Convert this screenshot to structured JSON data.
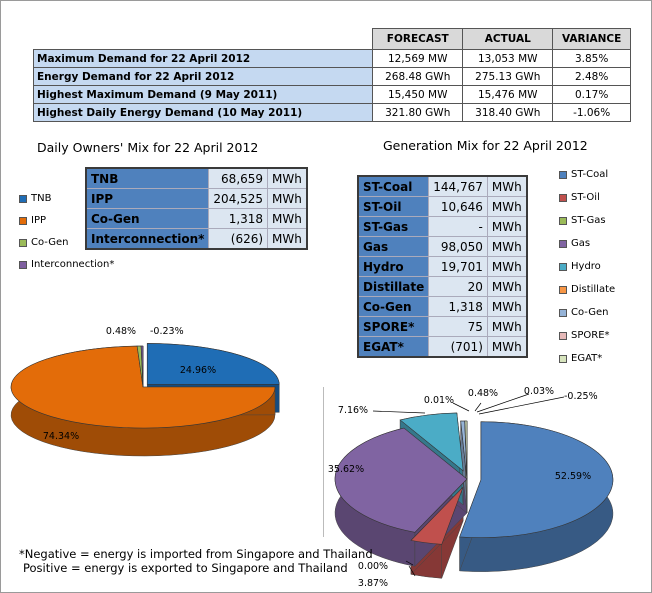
{
  "summary": {
    "headers": [
      "",
      "FORECAST",
      "ACTUAL",
      "VARIANCE"
    ],
    "rows": [
      [
        "Maximum Demand for 22 April 2012",
        "12,569 MW",
        "13,053 MW",
        "3.85%"
      ],
      [
        "Energy Demand for 22 April 2012",
        "268.48 GWh",
        "275.13 GWh",
        "2.48%"
      ],
      [
        "Highest Maximum Demand (9 May 2011)",
        "15,450 MW",
        "15,476 MW",
        "0.17%"
      ],
      [
        "Highest Daily Energy Demand (10 May 2011)",
        "321.80 GWh",
        "318.40 GWh",
        "-1.06%"
      ]
    ]
  },
  "owners": {
    "title": "Daily Owners' Mix for 22 April 2012",
    "table": [
      [
        "TNB",
        "68,659",
        "MWh"
      ],
      [
        "IPP",
        "204,525",
        "MWh"
      ],
      [
        "Co-Gen",
        "1,318",
        "MWh"
      ],
      [
        "Interconnection*",
        "(626)",
        "MWh"
      ]
    ],
    "legend": [
      "TNB",
      "IPP",
      "Co-Gen",
      "Interconnection*"
    ]
  },
  "generation": {
    "title": "Generation Mix for 22 April 2012",
    "table": [
      [
        "ST-Coal",
        "144,767",
        "MWh"
      ],
      [
        "ST-Oil",
        "10,646",
        "MWh"
      ],
      [
        "ST-Gas",
        "-",
        "MWh"
      ],
      [
        "Gas",
        "98,050",
        "MWh"
      ],
      [
        "Hydro",
        "19,701",
        "MWh"
      ],
      [
        "Distillate",
        "20",
        "MWh"
      ],
      [
        "Co-Gen",
        "1,318",
        "MWh"
      ],
      [
        "SPORE*",
        "75",
        "MWh"
      ],
      [
        "EGAT*",
        "(701)",
        "MWh"
      ]
    ],
    "legend": [
      "ST-Coal",
      "ST-Oil",
      "ST-Gas",
      "Gas",
      "Hydro",
      "Distillate",
      "Co-Gen",
      "SPORE*",
      "EGAT*"
    ]
  },
  "footnote": {
    "line1": "*Negative = energy is imported from Singapore and Thailand",
    "line2": "Positive = energy is exported to Singapore and Thailand"
  },
  "chart_data": [
    {
      "type": "pie",
      "title": "Daily Owners' Mix for 22 April 2012",
      "categories": [
        "TNB",
        "IPP",
        "Co-Gen",
        "Interconnection*"
      ],
      "values": [
        24.96,
        74.34,
        0.48,
        -0.23
      ],
      "labels": [
        "24.96%",
        "74.34%",
        "0.48%",
        "-0.23%"
      ],
      "colors": [
        "#1f6db5",
        "#e36c09",
        "#9bbb59",
        "#7f5fa0"
      ]
    },
    {
      "type": "pie",
      "title": "Generation Mix for 22 April 2012",
      "categories": [
        "ST-Coal",
        "ST-Oil",
        "ST-Gas",
        "Gas",
        "Hydro",
        "Distillate",
        "Co-Gen",
        "SPORE*",
        "EGAT*"
      ],
      "values": [
        52.59,
        3.87,
        0.0,
        35.62,
        7.16,
        0.01,
        0.48,
        0.03,
        -0.25
      ],
      "labels": [
        "52.59%",
        "3.87%",
        "0.00%",
        "35.62%",
        "7.16%",
        "0.01%",
        "0.48%",
        "0.03%",
        "-0.25%"
      ],
      "colors": [
        "#4f81bd",
        "#c0504d",
        "#9bbb59",
        "#8064a2",
        "#4bacc6",
        "#f79646",
        "#95b3d7",
        "#e6b9b8",
        "#d7e4bd"
      ]
    }
  ]
}
